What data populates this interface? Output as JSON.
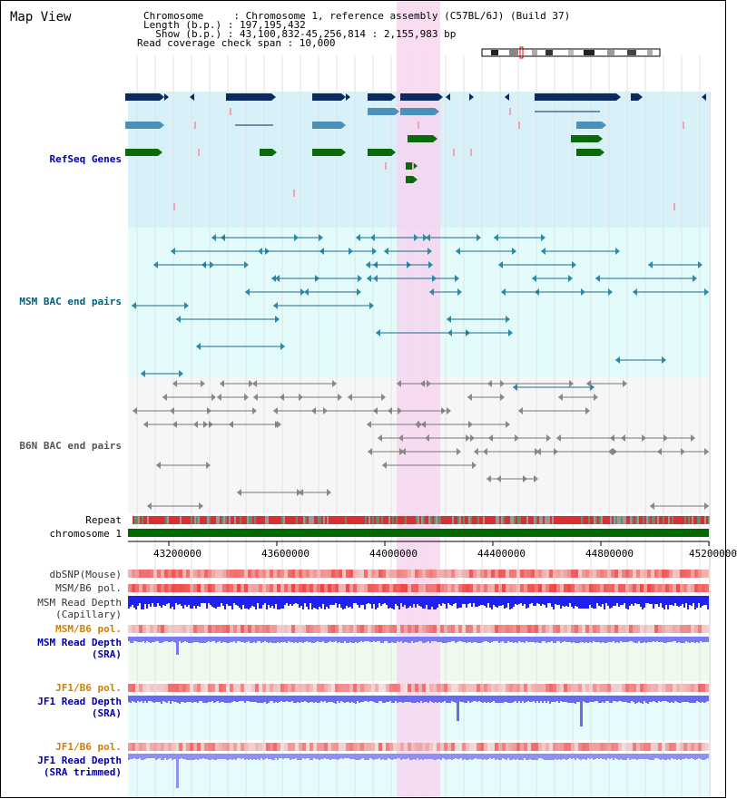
{
  "title": "Map View",
  "header": {
    "line1": "Chromosome     : Chromosome 1, reference assembly (C57BL/6J) (Build 37)",
    "line2": "Length (b.p.) : 197,195,432",
    "line3": "  Show (b.p.) : 43,100,832-45,256,814 : 2,155,983 bp",
    "line4": "Read coverage check span : 10,000"
  },
  "tracks": {
    "refseq": "RefSeq Genes",
    "msm_bac": "MSM BAC end pairs",
    "b6n_bac": "B6N BAC end pairs",
    "repeat": "Repeat",
    "chromosome": "chromosome 1",
    "dbsnp": "dbSNP(Mouse)",
    "msm_b6_pol": "MSM/B6 pol.",
    "msm_depth_cap_1": "MSM Read Depth",
    "msm_depth_cap_2": "(Capillary)",
    "msm_b6_pol2": "MSM/B6 pol.",
    "msm_depth_sra_1": "MSM Read Depth",
    "msm_depth_sra_2": "(SRA)",
    "jf1_b6_pol": "JF1/B6 pol.",
    "jf1_depth_sra_1": "JF1 Read Depth",
    "jf1_depth_sra_2": "(SRA)",
    "jf1_b6_pol2": "JF1/B6 pol.",
    "jf1_depth_trim_1": "JF1 Read Depth",
    "jf1_depth_trim_2": "(SRA trimmed)"
  },
  "axis_ticks": [
    "43200000",
    "43600000",
    "44000000",
    "44400000",
    "44800000",
    "45200000"
  ],
  "colors": {
    "refseq_label": "#0000aa",
    "msm_label": "#006080",
    "b6n_label": "#555555",
    "pol_label": "#d08000",
    "sra_label": "#0000aa",
    "highlight": "#f6d6f0",
    "refseq_bg": "#d8f0f8",
    "msm_bg": "#e4fbfb",
    "b6n_bg": "#f6f6f6",
    "gene_dark": "#0a2a60",
    "gene_mid": "#4a90b8",
    "gene_green": "#0a6a0a"
  }
}
